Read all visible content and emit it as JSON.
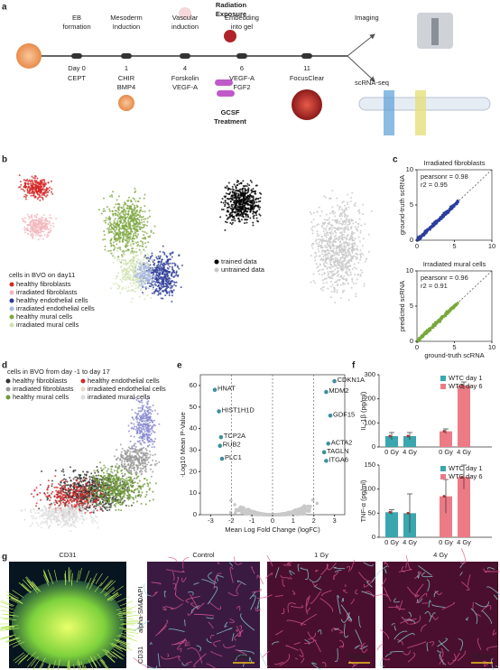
{
  "a": {
    "letter": "a",
    "steps": [
      {
        "title": [
          "EB",
          "formation"
        ],
        "day": "Day 0",
        "treatment": [
          "CEPT"
        ]
      },
      {
        "title": [
          "Mesoderm",
          "Induction"
        ],
        "day": "1",
        "treatment": [
          "CHIR",
          "BMP4"
        ]
      },
      {
        "title": [
          "Vascular",
          "induction"
        ],
        "day": "4",
        "treatment": [
          "Forskolin",
          "VEGF-A"
        ]
      },
      {
        "title": [
          "Embedding",
          "into gel"
        ],
        "day": "6",
        "treatment": [
          "VEGF-A",
          "FGF2"
        ]
      },
      {
        "title": [],
        "day": "11",
        "treatment": [
          "FocusClear"
        ]
      }
    ],
    "radiation": [
      "Radiation",
      "Exposure"
    ],
    "gcsf": [
      "GCSF",
      "Treatment"
    ],
    "outputs": [
      "Imaging",
      "scRNA-seq"
    ]
  },
  "b": {
    "letter": "b",
    "legend_title": "cells in BVO on day11",
    "legend": [
      "healthy fibroblasts",
      "irradiated fibroblasts",
      "healthy endothelial cells",
      "irradiated endothelial cells",
      "healthy mural cells",
      "irradiated mural cells"
    ],
    "colors": [
      "#d62828",
      "#f2b6bd",
      "#2e3d9a",
      "#a9b8e0",
      "#7fa843",
      "#cfe2b0"
    ],
    "train_legend": [
      "trained data",
      "untrained data"
    ],
    "train_colors": [
      "#000000",
      "#c8c8c8"
    ]
  },
  "c": {
    "letter": "c",
    "charts": [
      {
        "type": "scatter",
        "title": "Irradiated fibroblasts",
        "stats": [
          "pearsonr = 0.98",
          "r2 = 0.95"
        ],
        "ylabel": "ground-truth scRNA",
        "color": "#2b3d9e",
        "xlim": [
          0,
          10
        ],
        "xticks": [
          0,
          5,
          10
        ],
        "ylim": [
          0,
          10
        ],
        "yticks": [
          0,
          5,
          10
        ]
      },
      {
        "type": "scatter",
        "title": "Irradiated mural cells",
        "stats": [
          "pearsonr = 0.96",
          "r2 = 0.91"
        ],
        "ylabel": "predicted scRNA",
        "xlabel": "ground-truth scRNA",
        "color": "#79a83a",
        "xlim": [
          0,
          10
        ],
        "xticks": [
          0,
          5,
          10
        ],
        "ylim": [
          0,
          10
        ],
        "yticks": [
          0,
          5,
          10
        ]
      }
    ]
  },
  "d": {
    "letter": "d",
    "legend_title": "cells in BVO from day -1 to day 17",
    "legend": [
      "healthy fibroblasts",
      "healthy endothelial cells",
      "irradiated fibroblasts",
      "irradiated endothelial cells",
      "healthy mural cells",
      "irradiated mural cells"
    ],
    "colors": [
      "#333333",
      "#d62828",
      "#9a9a9a",
      "#e8d8c8",
      "#6f9a3a",
      "#dcdcdc"
    ]
  },
  "e": {
    "letter": "e",
    "type": "scatter",
    "xlabel": "Mean Log Fold Change (logFC)",
    "ylabel": "-Log10 Mean P-Value",
    "xlim": [
      -3.5,
      3.5
    ],
    "xticks": [
      -3,
      -2,
      -1,
      0,
      1,
      2,
      3
    ],
    "ylim": [
      0,
      65
    ],
    "yticks": [
      0,
      10,
      20,
      30,
      40,
      50,
      60
    ],
    "threshold_lines": [
      -2,
      0,
      2
    ],
    "color": "#3f8f9e",
    "points": [
      "HNAT",
      "HIST1H1D",
      "TCP2A",
      "RUB2",
      "PLC1",
      "CDKN1A",
      "MDM2",
      "GDF15",
      "ACTA2",
      "TAGLN",
      "ITGA6"
    ],
    "x": [
      -2.8,
      -2.6,
      -2.5,
      -2.55,
      -2.45,
      3.0,
      2.6,
      2.8,
      2.7,
      2.5,
      2.6
    ],
    "values": [
      58,
      48,
      36,
      32,
      26,
      62,
      57,
      46,
      33,
      29,
      25
    ]
  },
  "f": {
    "letter": "f",
    "charts": [
      {
        "type": "bar",
        "ylabel": "IL-1β (pg/ml)",
        "categories": [
          "0 Gy",
          "4 Gy"
        ],
        "ylim": [
          0,
          300
        ],
        "yticks": [
          0,
          100,
          200,
          300
        ],
        "series": [
          {
            "name": "WTC day 1",
            "color": "#3aa6ad",
            "values": [
              45,
              45
            ],
            "errors": [
              15,
              15
            ]
          },
          {
            "name": "WTC day 6",
            "color": "#ec7b86",
            "values": [
              65,
              255
            ],
            "errors": [
              10,
              15
            ]
          }
        ]
      },
      {
        "type": "bar",
        "ylabel": "TNF-α (pg/ml)",
        "categories": [
          "0 Gy",
          "4 Gy"
        ],
        "ylim": [
          0,
          150
        ],
        "yticks": [
          0,
          50,
          100,
          150
        ],
        "series": [
          {
            "name": "WTC day 1",
            "color": "#3aa6ad",
            "values": [
              52,
              50
            ],
            "errors": [
              5,
              40
            ]
          },
          {
            "name": "WTC day 6",
            "color": "#ec7b86",
            "values": [
              85,
              125
            ],
            "errors": [
              35,
              25
            ]
          }
        ]
      }
    ]
  },
  "g": {
    "letter": "g",
    "left_title": "CD31",
    "titles": [
      "Control",
      "1 Gy",
      "4 Gy"
    ],
    "stain": [
      "CD31",
      "alpha-SMA",
      "DAPI"
    ],
    "scale": "100μm"
  }
}
